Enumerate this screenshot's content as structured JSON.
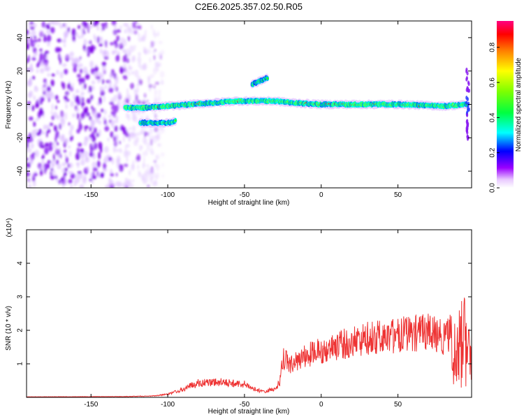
{
  "title": "C2E6.2025.357.02.50.R05",
  "colorbar": {
    "label": "Normalized spectral amplitude",
    "ticks": [
      "0.0",
      "0.2",
      "0.4",
      "0.6",
      "0.8"
    ],
    "tick_values": [
      0.0,
      0.2,
      0.4,
      0.6,
      0.8
    ],
    "range": [
      0,
      0.95
    ]
  },
  "chart_data": [
    {
      "type": "heatmap",
      "name": "spectrogram",
      "xlabel": "Height of straight line (km)",
      "ylabel": "Frequency (Hz)",
      "xlim": [
        -192,
        98
      ],
      "ylim": [
        -50,
        50
      ],
      "xticks": [
        -150,
        -100,
        -50,
        0,
        50
      ],
      "yticks": [
        -40,
        -20,
        0,
        20,
        40
      ],
      "noise_region_x": [
        -192,
        -115
      ],
      "traces": [
        {
          "x": [
            -128,
            -115,
            -100,
            -85,
            -70,
            -55,
            -40,
            -30,
            -20,
            0,
            20,
            50,
            80,
            95
          ],
          "y": [
            -2,
            -2,
            -1,
            0,
            1,
            2,
            2,
            2,
            1,
            0,
            0,
            0,
            -1,
            0
          ],
          "amplitude": 0.45
        },
        {
          "x": [
            -118,
            -112,
            -106,
            -100,
            -95
          ],
          "y": [
            -11,
            -11,
            -11,
            -11,
            -10
          ],
          "amplitude": 0.35
        },
        {
          "x": [
            -45,
            -40,
            -35
          ],
          "y": [
            12,
            14,
            16
          ],
          "amplitude": 0.3
        }
      ]
    },
    {
      "type": "line",
      "name": "snr",
      "xlabel": "Height of straight line (km)",
      "ylabel": "SNR (10 * v/v)",
      "yscale_label": "(x10⁴)",
      "xlim": [
        -192,
        98
      ],
      "ylim": [
        0,
        5
      ],
      "xticks": [
        -150,
        -100,
        -50,
        0,
        50
      ],
      "yticks": [
        1,
        2,
        3,
        4
      ],
      "envelope": {
        "x": [
          -192,
          -130,
          -110,
          -100,
          -90,
          -85,
          -80,
          -70,
          -60,
          -50,
          -45,
          -40,
          -35,
          -30,
          -27,
          -25,
          -20,
          -15,
          -10,
          -5,
          0,
          5,
          10,
          15,
          20,
          25,
          30,
          40,
          50,
          60,
          70,
          75,
          80,
          82,
          85,
          88,
          90,
          93,
          95,
          96,
          98
        ],
        "y": [
          0.02,
          0.03,
          0.05,
          0.12,
          0.3,
          0.45,
          0.55,
          0.6,
          0.55,
          0.5,
          0.35,
          0.25,
          0.25,
          0.35,
          0.6,
          1.5,
          1.3,
          1.4,
          1.6,
          1.7,
          1.8,
          1.9,
          2.0,
          2.05,
          2.1,
          2.2,
          2.3,
          2.35,
          2.4,
          2.45,
          2.5,
          2.4,
          2.3,
          2.4,
          2.5,
          2.4,
          2.7,
          3.2,
          2.6,
          2.3,
          2.2
        ]
      },
      "color": "#ee3333"
    }
  ]
}
